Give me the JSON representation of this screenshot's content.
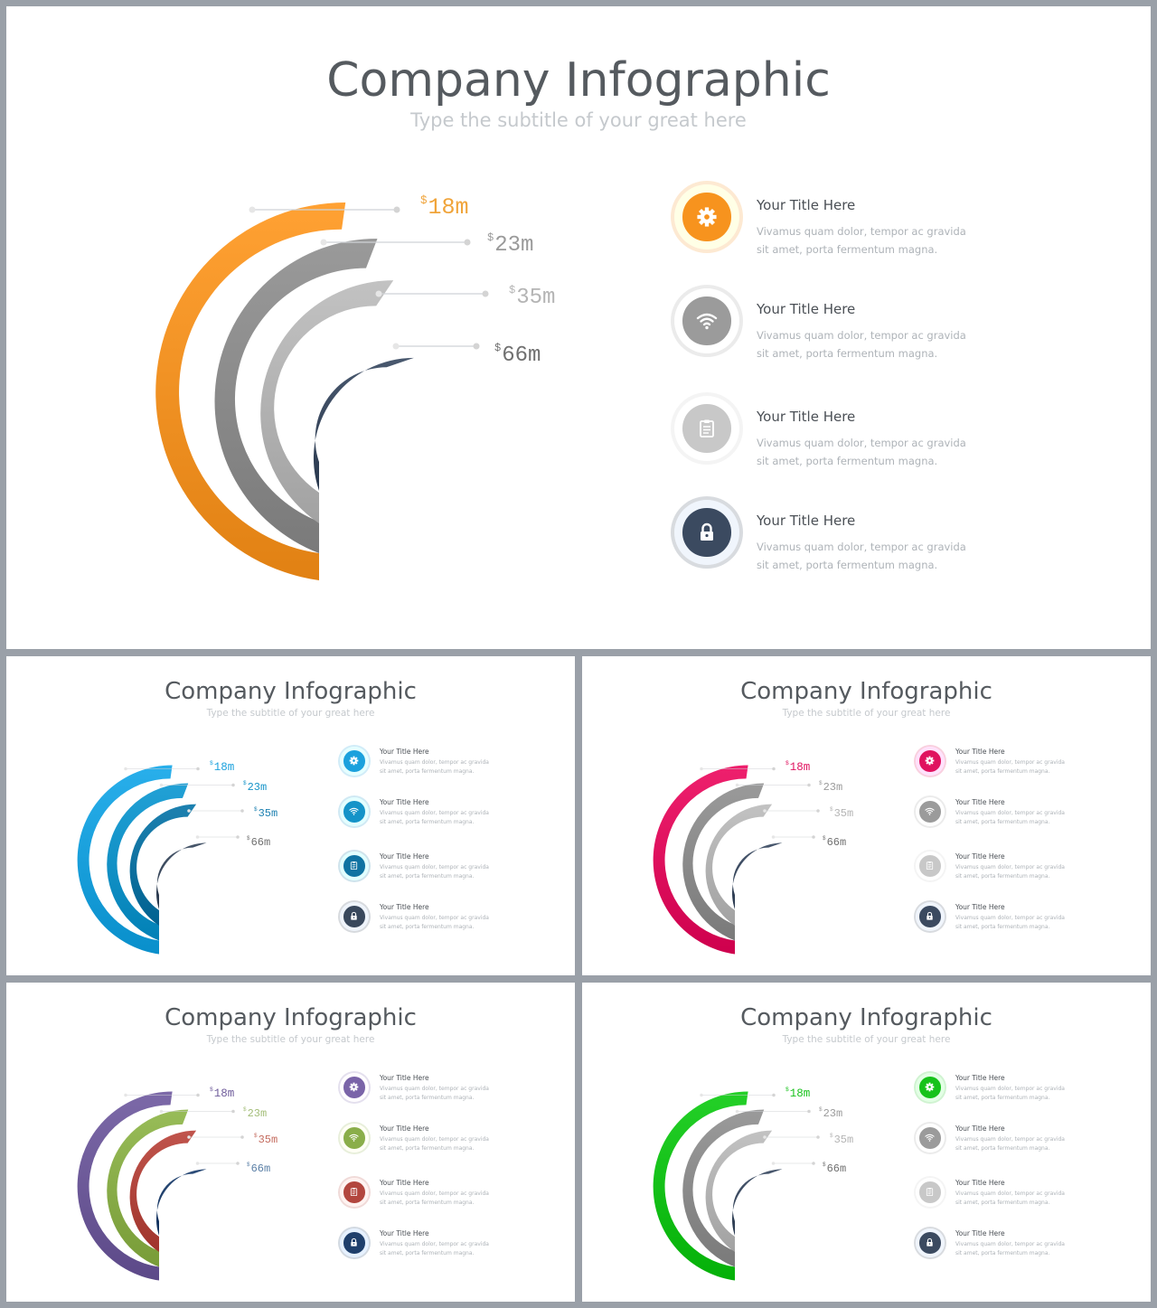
{
  "slides": [
    {
      "title": "Company Infographic",
      "subtitle": "Type the subtitle of your great here",
      "palette": {
        "rings": [
          "#f39325",
          "#8c8c8c",
          "#b4b4b4",
          "#3b4a60"
        ],
        "labels": [
          "#f0a43a",
          "#9a9a9a",
          "#b4b4b4",
          "#707070"
        ],
        "icons": [
          "#f7931e",
          "#9b9b9b",
          "#c8c8c8",
          "#3b4a60"
        ]
      }
    },
    {
      "title": "Company Infographic",
      "subtitle": "Type the subtitle of your great here",
      "palette": {
        "rings": [
          "#1ba1dd",
          "#1493c8",
          "#0f73a2",
          "#39485c"
        ],
        "labels": [
          "#1ba1dd",
          "#1493c8",
          "#1a7fb0",
          "#707070"
        ],
        "icons": [
          "#1ba1dd",
          "#1493c8",
          "#0f73a2",
          "#39485c"
        ]
      }
    },
    {
      "title": "Company Infographic",
      "subtitle": "Type the subtitle of your great here",
      "palette": {
        "rings": [
          "#e0125f",
          "#8c8c8c",
          "#b4b4b4",
          "#3b4a60"
        ],
        "labels": [
          "#e0125f",
          "#9a9a9a",
          "#b4b4b4",
          "#707070"
        ],
        "icons": [
          "#e0125f",
          "#9b9b9b",
          "#c8c8c8",
          "#3b4a60"
        ]
      }
    },
    {
      "title": "Company Infographic",
      "subtitle": "Type the subtitle of your great here",
      "palette": {
        "rings": [
          "#6e5b9a",
          "#8aae4a",
          "#b2463e",
          "#1f3f6b"
        ],
        "labels": [
          "#6e5b9a",
          "#a3bd78",
          "#c46b5e",
          "#5a7fa6"
        ],
        "icons": [
          "#7a64a8",
          "#8aae4a",
          "#b2463e",
          "#1f3f6b"
        ]
      }
    },
    {
      "title": "Company Infographic",
      "subtitle": "Type the subtitle of your great here",
      "palette": {
        "rings": [
          "#16c21a",
          "#8c8c8c",
          "#b4b4b4",
          "#3b4a60"
        ],
        "labels": [
          "#16c21a",
          "#9a9a9a",
          "#b4b4b4",
          "#707070"
        ],
        "icons": [
          "#16c21a",
          "#9b9b9b",
          "#c8c8c8",
          "#3b4a60"
        ]
      }
    }
  ],
  "values": [
    {
      "currency": "$",
      "amount": "18m"
    },
    {
      "currency": "$",
      "amount": "23m"
    },
    {
      "currency": "$",
      "amount": "35m"
    },
    {
      "currency": "$",
      "amount": "66m"
    }
  ],
  "items": [
    {
      "icon": "gear-icon",
      "title": "Your Title Here",
      "body": "Vivamus quam dolor, tempor ac gravida sit amet, porta fermentum  magna."
    },
    {
      "icon": "wifi-icon",
      "title": "Your Title Here",
      "body": "Vivamus quam dolor, tempor ac gravida sit amet, porta fermentum  magna."
    },
    {
      "icon": "clipboard-icon",
      "title": "Your Title Here",
      "body": "Vivamus quam dolor, tempor ac gravida sit amet, porta fermentum  magna."
    },
    {
      "icon": "lock-icon",
      "title": "Your Title Here",
      "body": "Vivamus quam dolor, tempor ac gravida sit amet, porta fermentum  magna."
    }
  ]
}
